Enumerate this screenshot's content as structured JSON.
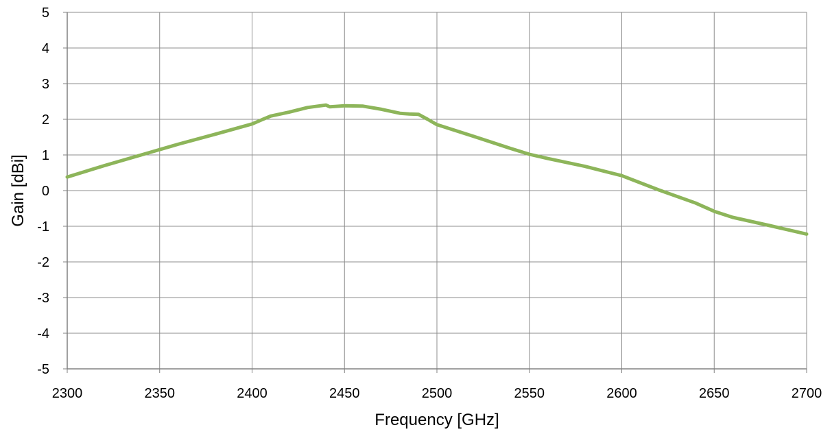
{
  "chart_data": {
    "type": "line",
    "title": "",
    "xlabel": "Frequency [GHz]",
    "ylabel": "Gain [dBi]",
    "xlim": [
      2300,
      2700
    ],
    "ylim": [
      -5,
      5
    ],
    "xticks": [
      2300,
      2350,
      2400,
      2450,
      2500,
      2550,
      2600,
      2650,
      2700
    ],
    "yticks": [
      -5,
      -4,
      -3,
      -2,
      -1,
      0,
      1,
      2,
      3,
      4,
      5
    ],
    "grid": true,
    "legend": "none",
    "series": [
      {
        "color": "#8db55a",
        "x": [
          2300,
          2320,
          2340,
          2360,
          2380,
          2400,
          2405,
          2410,
          2420,
          2430,
          2440,
          2442,
          2445,
          2450,
          2460,
          2470,
          2480,
          2485,
          2490,
          2495,
          2500,
          2520,
          2540,
          2550,
          2560,
          2580,
          2600,
          2620,
          2640,
          2650,
          2660,
          2680,
          2700
        ],
        "y": [
          0.38,
          0.7,
          1.0,
          1.3,
          1.58,
          1.87,
          1.98,
          2.09,
          2.2,
          2.33,
          2.4,
          2.35,
          2.36,
          2.38,
          2.37,
          2.28,
          2.17,
          2.15,
          2.14,
          2.0,
          1.85,
          1.52,
          1.18,
          1.02,
          0.9,
          0.68,
          0.42,
          0.02,
          -0.35,
          -0.58,
          -0.75,
          -0.98,
          -1.22
        ]
      }
    ]
  }
}
